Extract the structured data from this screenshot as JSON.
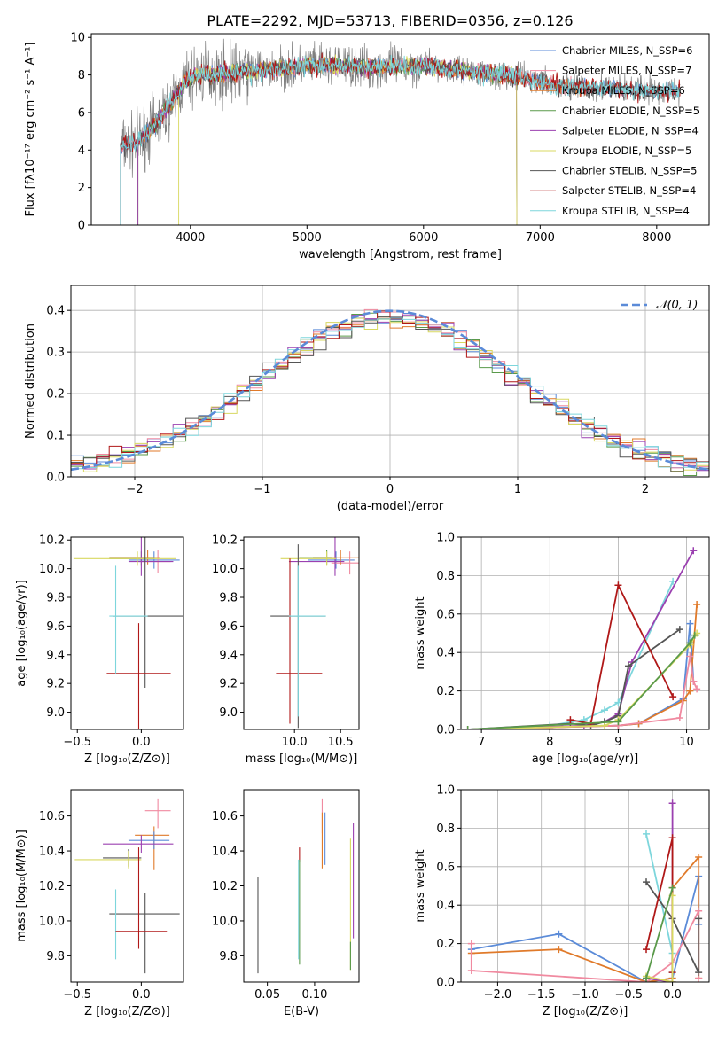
{
  "colors": {
    "chabrier_miles": "#5b8bd8",
    "salpeter_miles": "#f08aa0",
    "kroupa_miles": "#e07a2a",
    "chabrier_elodie": "#5a9a4a",
    "salpeter_elodie": "#9b40b0",
    "kroupa_elodie": "#d8d860",
    "chabrier_stelib": "#555555",
    "salpeter_stelib": "#b01818",
    "kroupa_stelib": "#7dd6dc",
    "normal": "#5b8bd8"
  },
  "chart_data": [
    {
      "id": "spectrum",
      "type": "line",
      "title": "PLATE=2292, MJD=53713, FIBERID=0356, z=0.126",
      "xlabel": "wavelength [Angstrom, rest frame]",
      "ylabel": "Flux [fλ10⁻¹⁷ erg cm⁻² s⁻¹ A⁻¹]",
      "xlim": [
        3150,
        8450
      ],
      "ylim": [
        0,
        10.2
      ],
      "xticks": [
        "4000",
        "5000",
        "6000",
        "7000",
        "8000"
      ],
      "yticks": [
        "0",
        "2",
        "4",
        "6",
        "8",
        "10"
      ],
      "legend_position": "right",
      "legend": [
        "Chabrier MILES, N_SSP=6",
        "Salpeter MILES, N_SSP=7",
        "Kroupa MILES, N_SSP=6",
        "Chabrier ELODIE, N_SSP=5",
        "Salpeter ELODIE, N_SSP=4",
        "Kroupa ELODIE, N_SSP=5",
        "Chabrier STELIB, N_SSP=5",
        "Salpeter STELIB, N_SSP=4",
        "Kroupa STELIB, N_SSP=4"
      ],
      "continuum_x": [
        3400,
        3550,
        3700,
        3850,
        3950,
        4050,
        4300,
        4500,
        4800,
        5000,
        5300,
        5600,
        6000,
        6400,
        6800,
        7200,
        7600,
        8000,
        8200
      ],
      "continuum_y": [
        4.2,
        4.4,
        5.4,
        6.6,
        7.6,
        8.0,
        8.1,
        8.2,
        8.35,
        8.5,
        8.5,
        8.4,
        8.5,
        8.2,
        7.9,
        7.4,
        7.3,
        7.1,
        7.2
      ]
    },
    {
      "id": "residuals",
      "type": "histogram",
      "xlabel": "(data-model)/error",
      "ylabel": "Normed distribution",
      "xlim": [
        -2.5,
        2.5
      ],
      "ylim": [
        0,
        0.46
      ],
      "xticks": [
        "−2",
        "−1",
        "0",
        "1",
        "2"
      ],
      "yticks": [
        "0.0",
        "0.1",
        "0.2",
        "0.3",
        "0.4"
      ],
      "legend": [
        "𝒩(0, 1)"
      ],
      "legend_position": "top-right",
      "grid": true
    },
    {
      "id": "age_vs_Z",
      "type": "errorbar",
      "xlabel": "Z [log₁₀(Z/Z⊙)]",
      "ylabel": "age  [log₁₀(age/yr)]",
      "xlim": [
        -0.55,
        0.33
      ],
      "ylim": [
        8.88,
        10.22
      ],
      "xticks": [
        "−0.5",
        "0.0"
      ],
      "yticks": [
        "9.0",
        "9.2",
        "9.4",
        "9.6",
        "9.8",
        "10.0",
        "10.2"
      ],
      "points": [
        {
          "s": "chabrier_miles",
          "x": 0.1,
          "xerr": [
            0.2,
            0.2
          ],
          "y": 10.06,
          "yerr": [
            0.06,
            0.06
          ]
        },
        {
          "s": "salpeter_miles",
          "x": 0.13,
          "xerr": [
            0.15,
            0.1
          ],
          "y": 10.05,
          "yerr": [
            0.08,
            0.08
          ]
        },
        {
          "s": "kroupa_miles",
          "x": 0.05,
          "xerr": [
            0.3,
            0.1
          ],
          "y": 10.08,
          "yerr": [
            0.05,
            0.05
          ]
        },
        {
          "s": "chabrier_elodie",
          "x": 0.0,
          "xerr": [
            0.25,
            0.1
          ],
          "y": 10.07,
          "yerr": [
            0.05,
            0.05
          ]
        },
        {
          "s": "salpeter_elodie",
          "x": 0.0,
          "xerr": [
            0.1,
            0.25
          ],
          "y": 10.05,
          "yerr": [
            0.1,
            1.1
          ]
        },
        {
          "s": "kroupa_elodie",
          "x": -0.03,
          "xerr": [
            0.5,
            0.3
          ],
          "y": 10.07,
          "yerr": [
            0.05,
            0.05
          ]
        },
        {
          "s": "chabrier_stelib",
          "x": 0.03,
          "xerr": [
            0.25,
            0.3
          ],
          "y": 9.67,
          "yerr": [
            0.5,
            0.75
          ]
        },
        {
          "s": "salpeter_stelib",
          "x": -0.02,
          "xerr": [
            0.25,
            0.25
          ],
          "y": 9.27,
          "yerr": [
            0.7,
            0.35
          ]
        },
        {
          "s": "kroupa_stelib",
          "x": -0.2,
          "xerr": [
            0.05,
            0.25
          ],
          "y": 9.67,
          "yerr": [
            0.4,
            0.35
          ]
        }
      ]
    },
    {
      "id": "age_vs_mass",
      "type": "errorbar",
      "xlabel": "mass [log₁₀(M/M⊙)]",
      "xlim": [
        9.45,
        10.7
      ],
      "ylim": [
        8.88,
        10.22
      ],
      "xticks": [
        "10.0",
        "10.5"
      ],
      "yticks": [
        "9.0",
        "9.2",
        "9.4",
        "9.6",
        "9.8",
        "10.0",
        "10.2"
      ],
      "points": [
        {
          "s": "chabrier_miles",
          "x": 10.45,
          "xerr": [
            0.3,
            0.2
          ],
          "y": 10.06,
          "yerr": [
            0.06,
            0.06
          ]
        },
        {
          "s": "salpeter_miles",
          "x": 10.6,
          "xerr": [
            0.2,
            0.1
          ],
          "y": 10.04,
          "yerr": [
            0.08,
            0.08
          ]
        },
        {
          "s": "kroupa_miles",
          "x": 10.5,
          "xerr": [
            0.3,
            0.2
          ],
          "y": 10.08,
          "yerr": [
            0.05,
            0.05
          ]
        },
        {
          "s": "chabrier_elodie",
          "x": 10.35,
          "xerr": [
            0.3,
            0.05
          ],
          "y": 10.08,
          "yerr": [
            0.05,
            0.05
          ]
        },
        {
          "s": "salpeter_elodie",
          "x": 10.44,
          "xerr": [
            0.5,
            0.1
          ],
          "y": 10.05,
          "yerr": [
            0.1,
            0.9
          ]
        },
        {
          "s": "kroupa_elodie",
          "x": 10.35,
          "xerr": [
            0.5,
            0.1
          ],
          "y": 10.07,
          "yerr": [
            0.05,
            0.05
          ]
        },
        {
          "s": "chabrier_stelib",
          "x": 10.04,
          "xerr": [
            0.3,
            0.3
          ],
          "y": 9.67,
          "yerr": [
            0.78,
            0.5
          ]
        },
        {
          "s": "salpeter_stelib",
          "x": 9.95,
          "xerr": [
            0.15,
            0.35
          ],
          "y": 9.27,
          "yerr": [
            0.35,
            0.8
          ]
        },
        {
          "s": "kroupa_stelib",
          "x": 10.04,
          "xerr": [
            0.1,
            0.3
          ],
          "y": 9.67,
          "yerr": [
            0.7,
            0.35
          ]
        }
      ]
    },
    {
      "id": "mw_vs_age",
      "type": "line",
      "xlabel": "age  [log₁₀(age/yr)]",
      "ylabel": "mass weight",
      "xlim": [
        6.7,
        10.33
      ],
      "ylim": [
        0,
        1
      ],
      "xticks": [
        "7",
        "8",
        "9",
        "10"
      ],
      "yticks": [
        "0.0",
        "0.2",
        "0.4",
        "0.6",
        "0.8",
        "1.0"
      ],
      "grid": true,
      "series": [
        {
          "s": "kroupa_stelib",
          "x": [
            6.8,
            8.0,
            8.5,
            8.8,
            9.0,
            9.8
          ],
          "y": [
            0.0,
            0.02,
            0.05,
            0.1,
            0.14,
            0.77
          ]
        },
        {
          "s": "salpeter_elodie",
          "x": [
            6.8,
            8.5,
            8.8,
            9.0,
            9.2,
            10.1
          ],
          "y": [
            0.0,
            0.02,
            0.04,
            0.08,
            0.35,
            0.93
          ]
        },
        {
          "s": "chabrier_stelib",
          "x": [
            6.8,
            8.3,
            8.6,
            8.8,
            9.0,
            9.15,
            9.9
          ],
          "y": [
            0.0,
            0.03,
            0.02,
            0.04,
            0.07,
            0.33,
            0.52
          ]
        },
        {
          "s": "salpeter_stelib",
          "x": [
            8.3,
            8.6,
            9.0,
            9.8
          ],
          "y": [
            0.05,
            0.03,
            0.75,
            0.17
          ]
        },
        {
          "s": "chabrier_miles",
          "x": [
            6.8,
            8.0,
            9.0,
            9.3,
            9.95,
            10.05,
            10.1
          ],
          "y": [
            0.0,
            0.01,
            0.02,
            0.03,
            0.16,
            0.55,
            0.25
          ]
        },
        {
          "s": "kroupa_miles",
          "x": [
            6.8,
            8.0,
            9.0,
            9.3,
            9.95,
            10.05,
            10.15
          ],
          "y": [
            0.0,
            0.01,
            0.02,
            0.03,
            0.15,
            0.2,
            0.65
          ]
        },
        {
          "s": "salpeter_miles",
          "x": [
            6.8,
            9.0,
            9.9,
            10.05,
            10.1,
            10.15
          ],
          "y": [
            0.0,
            0.02,
            0.06,
            0.38,
            0.25,
            0.21
          ]
        },
        {
          "s": "kroupa_elodie",
          "x": [
            6.8,
            8.8,
            9.0,
            10.05,
            10.15
          ],
          "y": [
            0.0,
            0.02,
            0.05,
            0.44,
            0.5
          ]
        },
        {
          "s": "chabrier_elodie",
          "x": [
            6.8,
            9.0,
            10.05,
            10.12
          ],
          "y": [
            0.0,
            0.04,
            0.45,
            0.49
          ]
        }
      ]
    },
    {
      "id": "mass_vs_Z",
      "type": "errorbar",
      "xlabel": "Z [log₁₀(Z/Z⊙)]",
      "ylabel": "mass [log₁₀(M/M⊙)]",
      "xlim": [
        -0.55,
        0.33
      ],
      "ylim": [
        9.65,
        10.75
      ],
      "xticks": [
        "−0.5",
        "0.0"
      ],
      "yticks": [
        "9.8",
        "10.0",
        "10.2",
        "10.4",
        "10.6"
      ],
      "points": [
        {
          "s": "salpeter_miles",
          "x": 0.13,
          "xerr": [
            0.1,
            0.1
          ],
          "y": 10.63,
          "yerr": [
            0.1,
            0.07
          ]
        },
        {
          "s": "kroupa_miles",
          "x": 0.1,
          "xerr": [
            0.15,
            0.12
          ],
          "y": 10.49,
          "yerr": [
            0.2,
            0.05
          ]
        },
        {
          "s": "chabrier_miles",
          "x": 0.1,
          "xerr": [
            0.2,
            0.12
          ],
          "y": 10.46,
          "yerr": [
            0.05,
            0.05
          ]
        },
        {
          "s": "salpeter_elodie",
          "x": 0.0,
          "xerr": [
            0.3,
            0.25
          ],
          "y": 10.44,
          "yerr": [
            0.05,
            0.05
          ]
        },
        {
          "s": "chabrier_stelib",
          "x": -0.1,
          "xerr": [
            0.2,
            0.1
          ],
          "y": 10.36,
          "yerr": [
            0.05,
            0.05
          ]
        },
        {
          "s": "kroupa_elodie",
          "x": -0.1,
          "xerr": [
            0.42,
            0.1
          ],
          "y": 10.35,
          "yerr": [
            0.05,
            0.05
          ]
        },
        {
          "s": "chabrier_stelib",
          "x": 0.03,
          "xerr": [
            0.0,
            0.0
          ],
          "y": 10.04,
          "yerr": [
            0.34,
            0.12
          ]
        },
        {
          "s": "chabrier_stelib",
          "x": 0.0,
          "xerr": [
            0.25,
            0.3
          ],
          "y": 10.04,
          "yerr": [
            0.0,
            0.0
          ]
        },
        {
          "s": "kroupa_stelib",
          "x": -0.2,
          "xerr": [
            0.0,
            0.0
          ],
          "y": 10.04,
          "yerr": [
            0.26,
            0.14
          ]
        },
        {
          "s": "salpeter_stelib",
          "x": -0.02,
          "xerr": [
            0.0,
            0.0
          ],
          "y": 10.04,
          "yerr": [
            0.2,
            0.38
          ]
        },
        {
          "s": "salpeter_stelib",
          "x": 0.0,
          "xerr": [
            0.2,
            0.2
          ],
          "y": 9.94,
          "yerr": [
            0.0,
            0.0
          ]
        }
      ]
    },
    {
      "id": "mass_vs_ebv",
      "type": "errorbar",
      "xlabel": "E(B-V)",
      "xlim": [
        0.025,
        0.147
      ],
      "ylim": [
        9.65,
        10.75
      ],
      "xticks": [
        "0.05",
        "0.10"
      ],
      "yticks": [
        "9.8",
        "10.0",
        "10.2",
        "10.4",
        "10.6"
      ],
      "points": [
        {
          "s": "chabrier_stelib",
          "x": 0.04,
          "y": 10.0,
          "yerr": [
            0.3,
            0.25
          ]
        },
        {
          "s": "salpeter_stelib",
          "x": 0.084,
          "y": 10.38,
          "yerr": [
            0.04,
            0.04
          ]
        },
        {
          "s": "chabrier_elodie",
          "x": 0.084,
          "y": 10.05,
          "yerr": [
            0.3,
            0.3
          ]
        },
        {
          "s": "kroupa_stelib",
          "x": 0.083,
          "y": 10.05,
          "yerr": [
            0.27,
            0.3
          ]
        },
        {
          "s": "salpeter_miles",
          "x": 0.108,
          "y": 10.6,
          "yerr": [
            0.1,
            0.1
          ]
        },
        {
          "s": "kroupa_miles",
          "x": 0.108,
          "y": 10.5,
          "yerr": [
            0.2,
            0.12
          ]
        },
        {
          "s": "chabrier_miles",
          "x": 0.111,
          "y": 10.47,
          "yerr": [
            0.15,
            0.15
          ]
        },
        {
          "s": "kroupa_elodie",
          "x": 0.138,
          "y": 10.1,
          "yerr": [
            0.38,
            0.37
          ]
        },
        {
          "s": "chabrier_elodie",
          "x": 0.138,
          "y": 9.8,
          "yerr": [
            0.08,
            0.08
          ]
        },
        {
          "s": "salpeter_elodie",
          "x": 0.141,
          "y": 10.2,
          "yerr": [
            0.3,
            0.36
          ]
        }
      ]
    },
    {
      "id": "mw_vs_Z",
      "type": "line",
      "xlabel": "Z [log₁₀(Z/Z⊙)]",
      "ylabel": "mass weight",
      "xlim": [
        -2.42,
        0.42
      ],
      "ylim": [
        0,
        1
      ],
      "xticks": [
        "−2.0",
        "−1.5",
        "−1.0",
        "−0.5",
        "0.0"
      ],
      "yticks": [
        "0.0",
        "0.2",
        "0.4",
        "0.6",
        "0.8",
        "1.0"
      ],
      "grid": true,
      "series": [
        {
          "s": "chabrier_miles",
          "x": [
            -2.3,
            -1.3,
            -0.3,
            0.0,
            0.3,
            0.3
          ],
          "y": [
            0.17,
            0.25,
            0.0,
            0.02,
            0.55,
            0.3
          ]
        },
        {
          "s": "kroupa_miles",
          "x": [
            -2.3,
            -1.3,
            -0.3,
            0.0,
            0.0,
            0.3,
            0.3
          ],
          "y": [
            0.15,
            0.17,
            0.0,
            0.02,
            0.49,
            0.65,
            0.02
          ]
        },
        {
          "s": "salpeter_miles",
          "x": [
            -2.3,
            -2.3,
            -0.3,
            0.0,
            0.3,
            0.3
          ],
          "y": [
            0.2,
            0.06,
            0.0,
            0.1,
            0.37,
            0.02
          ]
        },
        {
          "s": "salpeter_elodie",
          "x": [
            -0.3,
            0.0,
            0.0
          ],
          "y": [
            0.02,
            0.0,
            0.93
          ]
        },
        {
          "s": "kroupa_stelib",
          "x": [
            -0.3,
            0.0,
            0.0
          ],
          "y": [
            0.77,
            0.15,
            0.05
          ]
        },
        {
          "s": "chabrier_stelib",
          "x": [
            -0.3,
            0.0,
            0.3,
            0.3
          ],
          "y": [
            0.52,
            0.33,
            0.05,
            0.33
          ]
        },
        {
          "s": "salpeter_stelib",
          "x": [
            -0.3,
            0.0,
            0.0
          ],
          "y": [
            0.17,
            0.75,
            0.05
          ]
        },
        {
          "s": "kroupa_elodie",
          "x": [
            -0.3,
            0.0,
            0.0
          ],
          "y": [
            0.03,
            0.0,
            0.45
          ]
        },
        {
          "s": "chabrier_elodie",
          "x": [
            -0.3,
            0.0
          ],
          "y": [
            0.02,
            0.49
          ]
        }
      ]
    }
  ]
}
